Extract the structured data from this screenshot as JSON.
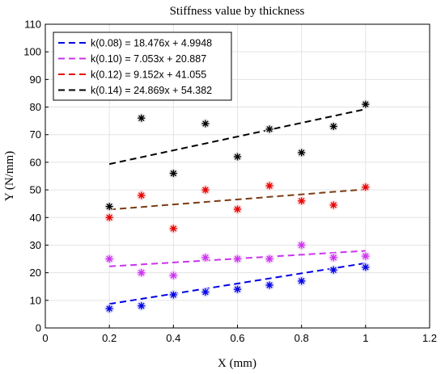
{
  "chart_data": {
    "type": "scatter",
    "title": "Stiffness value by thickness",
    "xlabel": "X (mm)",
    "ylabel": "Y (N/mm)",
    "xlim": [
      0,
      1.2
    ],
    "ylim": [
      0,
      110
    ],
    "xticks": [
      "0",
      "0.2",
      "0.4",
      "0.6",
      "0.8",
      "1",
      "1.2"
    ],
    "yticks": [
      "0",
      "10",
      "20",
      "30",
      "40",
      "50",
      "60",
      "70",
      "80",
      "90",
      "100",
      "110"
    ],
    "grid": true,
    "legend_position": "top-left",
    "series": [
      {
        "name": "k(0.08) = 18.476x + 4.9948",
        "color": "#0000e6",
        "marker": "asterisk",
        "x": [
          0.2,
          0.3,
          0.4,
          0.5,
          0.6,
          0.7,
          0.8,
          0.9,
          1.0
        ],
        "y": [
          7,
          8,
          12,
          13,
          14,
          15.5,
          17,
          21,
          22
        ],
        "fit": {
          "slope": 18.476,
          "intercept": 4.9948,
          "x_range": [
            0.2,
            1.0
          ]
        }
      },
      {
        "name": "k(0.10) = 7.053x + 20.887",
        "color": "#cc33ee",
        "marker": "asterisk",
        "x": [
          0.2,
          0.3,
          0.4,
          0.5,
          0.6,
          0.7,
          0.8,
          0.9,
          1.0
        ],
        "y": [
          25,
          20,
          19,
          25.5,
          25,
          25,
          30,
          25.5,
          26
        ],
        "fit": {
          "slope": 7.053,
          "intercept": 20.887,
          "x_range": [
            0.2,
            1.0
          ]
        }
      },
      {
        "name": "k(0.12) = 9.152x + 41.055",
        "color": "#e60000",
        "marker": "asterisk",
        "x": [
          0.2,
          0.3,
          0.4,
          0.5,
          0.6,
          0.7,
          0.8,
          0.9,
          1.0
        ],
        "y": [
          40,
          48,
          36,
          50,
          43,
          51.5,
          46,
          44.5,
          51
        ],
        "fit": {
          "slope": 9.152,
          "intercept": 41.055,
          "x_range": [
            0.2,
            1.0
          ]
        }
      },
      {
        "name": "k(0.14) = 24.869x + 54.382",
        "color": "#000000",
        "marker": "asterisk",
        "x": [
          0.2,
          0.3,
          0.4,
          0.5,
          0.6,
          0.7,
          0.8,
          0.9,
          1.0
        ],
        "y": [
          44,
          76,
          56,
          74,
          62,
          72,
          63.5,
          73,
          81
        ],
        "fit": {
          "slope": 24.869,
          "intercept": 54.382,
          "x_range": [
            0.2,
            1.0
          ]
        }
      }
    ]
  }
}
